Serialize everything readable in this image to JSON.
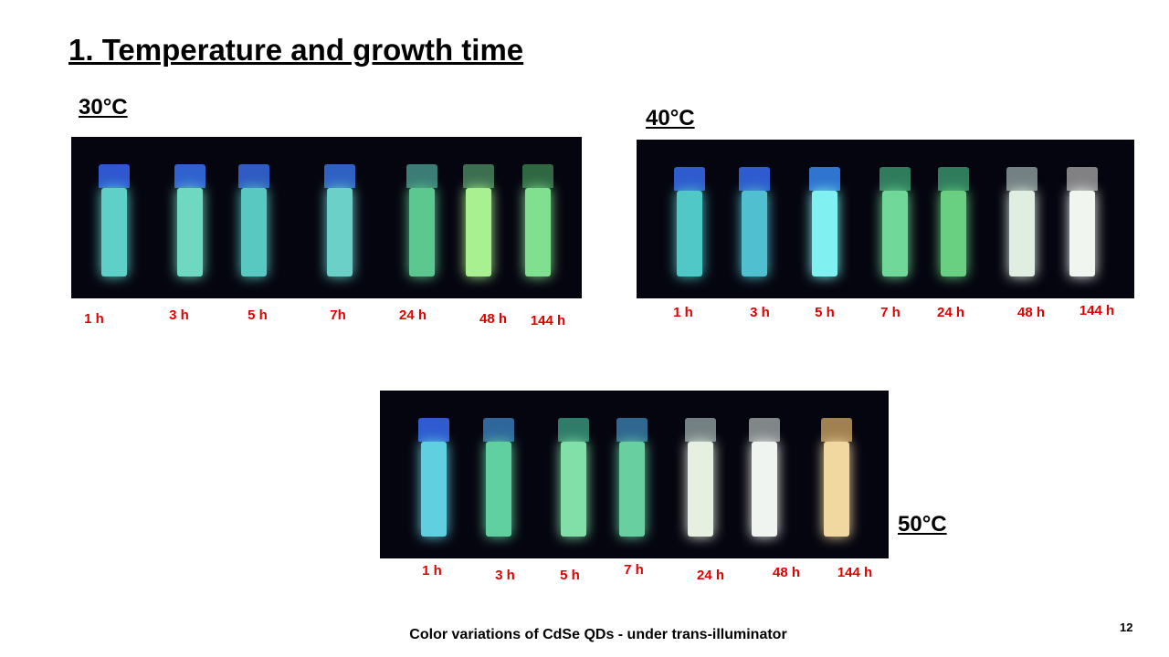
{
  "title": "1. Temperature and growth time",
  "groups": [
    {
      "label": "30°C",
      "times": [
        "1 h",
        "3 h",
        "5 h",
        "7h",
        "24 h",
        "48 h",
        "144 h"
      ]
    },
    {
      "label": "40°C",
      "times": [
        "1 h",
        "3 h",
        "5 h",
        "7 h",
        "24 h",
        "48 h",
        "144 h"
      ]
    },
    {
      "label": "50°C",
      "times": [
        "1 h",
        "3 h",
        "5 h",
        "7 h",
        "24 h",
        "48 h",
        "144 h"
      ]
    }
  ],
  "caption": "Color variations of CdSe QDs - under trans-illuminator",
  "page_number": "12"
}
